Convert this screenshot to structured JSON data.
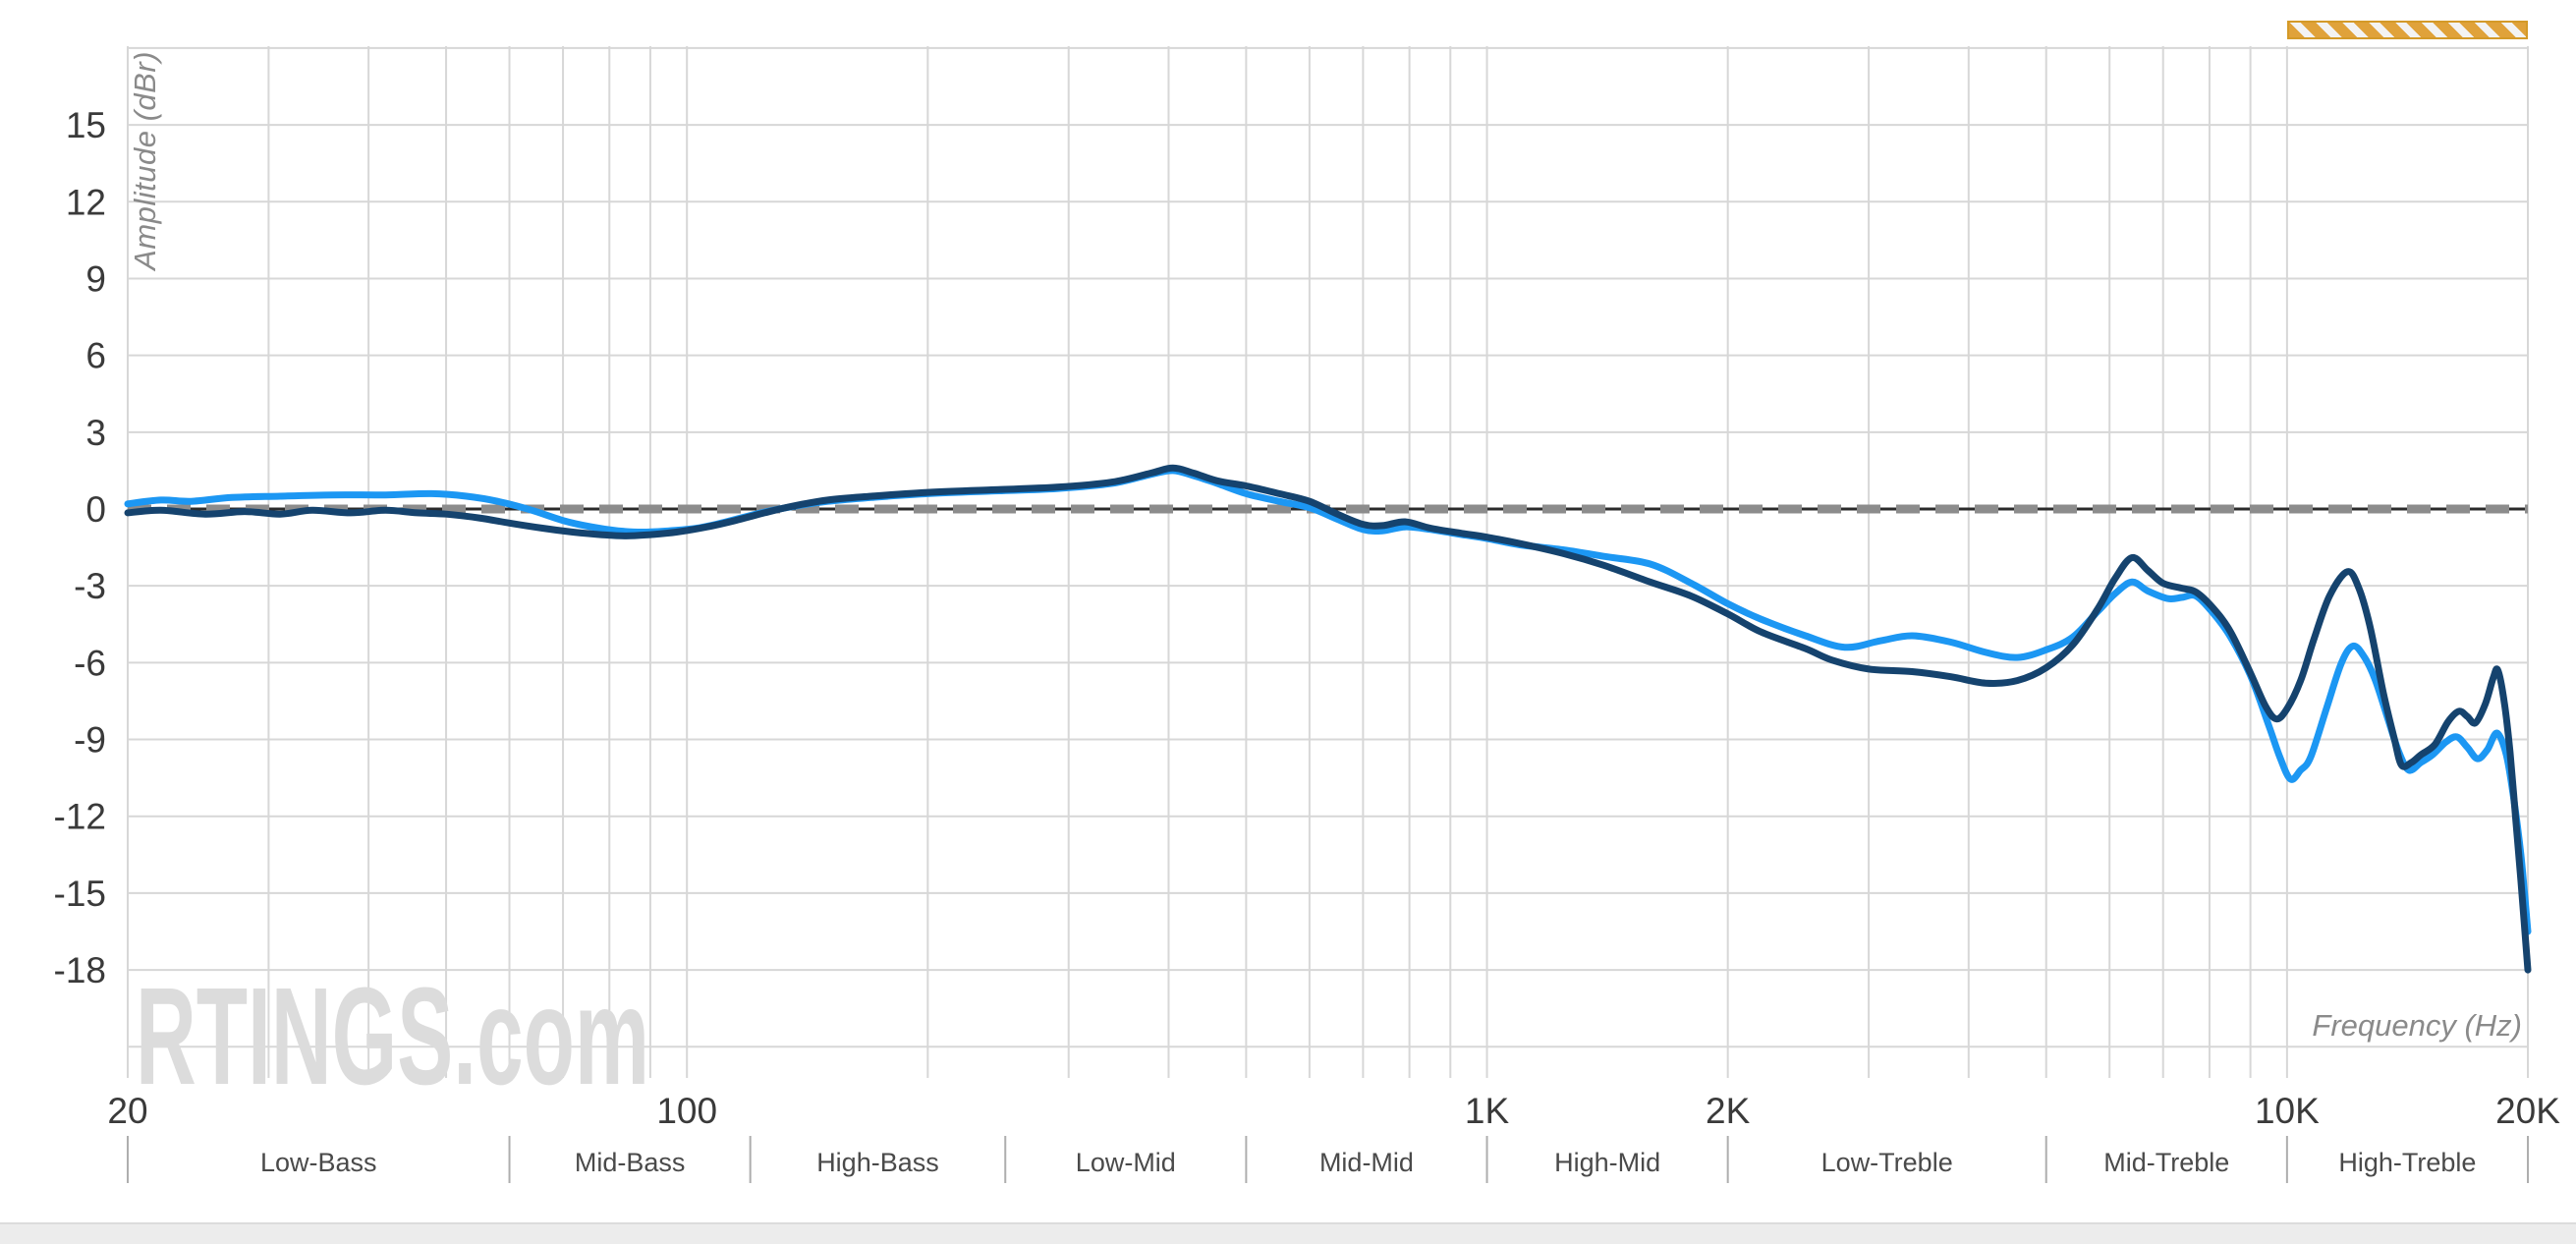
{
  "page": {
    "watermark": "RTINGS.com",
    "background": "#ffffff",
    "footer_bar_color": "#ececec"
  },
  "chart_data": {
    "type": "line",
    "title": "",
    "xlabel": "Frequency (Hz)",
    "ylabel": "Amplitude (dBr)",
    "x_scale": "log",
    "x_range": [
      20,
      20000
    ],
    "y_grid_range": [
      -21,
      18
    ],
    "grid": true,
    "grid_color": "#d7d7d7",
    "tick_label_color": "#3a3a3a",
    "axis_label_color": "#8a8a8a",
    "band_tick_color": "#aeaeae",
    "band_label_color": "#4a4a4a",
    "watermark_color": "#dcdcdc",
    "y_ticks": [
      15,
      12,
      9,
      6,
      3,
      0,
      -3,
      -6,
      -9,
      -12,
      -15,
      -18
    ],
    "grid_db": [
      18,
      15,
      12,
      9,
      6,
      3,
      0,
      -3,
      -6,
      -9,
      -12,
      -15,
      -18,
      -21
    ],
    "grid_freqs": [
      20,
      30,
      40,
      50,
      60,
      70,
      80,
      90,
      100,
      200,
      300,
      400,
      500,
      600,
      700,
      800,
      900,
      1000,
      2000,
      3000,
      4000,
      5000,
      6000,
      7000,
      8000,
      9000,
      10000,
      20000
    ],
    "x_tick_labels": [
      {
        "f": 20,
        "label": "20"
      },
      {
        "f": 100,
        "label": "100"
      },
      {
        "f": 1000,
        "label": "1K"
      },
      {
        "f": 2000,
        "label": "2K"
      },
      {
        "f": 10000,
        "label": "10K"
      },
      {
        "f": 20000,
        "label": "20K"
      }
    ],
    "bands": [
      {
        "label": "Low-Bass",
        "from": 20,
        "to": 60
      },
      {
        "label": "Mid-Bass",
        "from": 60,
        "to": 120
      },
      {
        "label": "High-Bass",
        "from": 120,
        "to": 250
      },
      {
        "label": "Low-Mid",
        "from": 250,
        "to": 500
      },
      {
        "label": "Mid-Mid",
        "from": 500,
        "to": 1000
      },
      {
        "label": "High-Mid",
        "from": 1000,
        "to": 2000
      },
      {
        "label": "Low-Treble",
        "from": 2000,
        "to": 5000
      },
      {
        "label": "Mid-Treble",
        "from": 5000,
        "to": 10000
      },
      {
        "label": "High-Treble",
        "from": 10000,
        "to": 20000
      }
    ],
    "target_line": {
      "db": 0,
      "dash_color": "#8c8c8c",
      "base_color": "#2b2b2b"
    },
    "unreliable_region_marker": {
      "from": 10000,
      "to": 20000,
      "stripe_color": "#e0a23a"
    },
    "series": [
      {
        "name": "response-light-blue",
        "color": "#1c97f3",
        "points": [
          [
            20,
            0.2
          ],
          [
            22,
            0.35
          ],
          [
            24,
            0.3
          ],
          [
            27,
            0.45
          ],
          [
            31,
            0.5
          ],
          [
            36,
            0.55
          ],
          [
            42,
            0.55
          ],
          [
            48,
            0.6
          ],
          [
            53,
            0.5
          ],
          [
            58,
            0.3
          ],
          [
            64,
            -0.05
          ],
          [
            70,
            -0.45
          ],
          [
            76,
            -0.7
          ],
          [
            82,
            -0.85
          ],
          [
            88,
            -0.9
          ],
          [
            95,
            -0.85
          ],
          [
            103,
            -0.75
          ],
          [
            112,
            -0.5
          ],
          [
            122,
            -0.2
          ],
          [
            133,
            0.05
          ],
          [
            150,
            0.3
          ],
          [
            170,
            0.45
          ],
          [
            200,
            0.6
          ],
          [
            240,
            0.7
          ],
          [
            290,
            0.8
          ],
          [
            340,
            1.0
          ],
          [
            380,
            1.35
          ],
          [
            405,
            1.5
          ],
          [
            430,
            1.3
          ],
          [
            460,
            1.0
          ],
          [
            500,
            0.6
          ],
          [
            550,
            0.3
          ],
          [
            600,
            0.05
          ],
          [
            650,
            -0.4
          ],
          [
            700,
            -0.8
          ],
          [
            740,
            -0.85
          ],
          [
            790,
            -0.7
          ],
          [
            850,
            -0.8
          ],
          [
            930,
            -1.0
          ],
          [
            1000,
            -1.15
          ],
          [
            1100,
            -1.4
          ],
          [
            1250,
            -1.6
          ],
          [
            1400,
            -1.85
          ],
          [
            1600,
            -2.15
          ],
          [
            1800,
            -2.9
          ],
          [
            2000,
            -3.7
          ],
          [
            2200,
            -4.3
          ],
          [
            2500,
            -4.95
          ],
          [
            2800,
            -5.4
          ],
          [
            3100,
            -5.15
          ],
          [
            3400,
            -4.95
          ],
          [
            3800,
            -5.2
          ],
          [
            4200,
            -5.6
          ],
          [
            4600,
            -5.8
          ],
          [
            5000,
            -5.5
          ],
          [
            5400,
            -5.0
          ],
          [
            5800,
            -4.0
          ],
          [
            6100,
            -3.3
          ],
          [
            6400,
            -2.85
          ],
          [
            6700,
            -3.2
          ],
          [
            7100,
            -3.5
          ],
          [
            7400,
            -3.45
          ],
          [
            7700,
            -3.4
          ],
          [
            8100,
            -4.1
          ],
          [
            8500,
            -5.0
          ],
          [
            9000,
            -6.5
          ],
          [
            9500,
            -8.5
          ],
          [
            9800,
            -9.7
          ],
          [
            10100,
            -10.55
          ],
          [
            10400,
            -10.2
          ],
          [
            10700,
            -9.7
          ],
          [
            11200,
            -7.8
          ],
          [
            11700,
            -6.0
          ],
          [
            12100,
            -5.35
          ],
          [
            12500,
            -5.8
          ],
          [
            12900,
            -6.7
          ],
          [
            13400,
            -8.3
          ],
          [
            13800,
            -9.5
          ],
          [
            14200,
            -10.2
          ],
          [
            14700,
            -9.9
          ],
          [
            15200,
            -9.6
          ],
          [
            15800,
            -9.1
          ],
          [
            16300,
            -8.9
          ],
          [
            16800,
            -9.3
          ],
          [
            17300,
            -9.75
          ],
          [
            17800,
            -9.4
          ],
          [
            18300,
            -8.75
          ],
          [
            18800,
            -9.6
          ],
          [
            19200,
            -11.3
          ],
          [
            19600,
            -13.5
          ],
          [
            20000,
            -16.5
          ]
        ]
      },
      {
        "name": "response-dark-blue",
        "color": "#15436e",
        "points": [
          [
            20,
            -0.15
          ],
          [
            22,
            -0.05
          ],
          [
            25,
            -0.2
          ],
          [
            28,
            -0.1
          ],
          [
            31,
            -0.2
          ],
          [
            34,
            -0.05
          ],
          [
            38,
            -0.15
          ],
          [
            42,
            -0.05
          ],
          [
            46,
            -0.15
          ],
          [
            50,
            -0.2
          ],
          [
            55,
            -0.35
          ],
          [
            60,
            -0.55
          ],
          [
            66,
            -0.75
          ],
          [
            72,
            -0.9
          ],
          [
            78,
            -1.0
          ],
          [
            84,
            -1.05
          ],
          [
            90,
            -1.0
          ],
          [
            97,
            -0.9
          ],
          [
            106,
            -0.7
          ],
          [
            115,
            -0.45
          ],
          [
            125,
            -0.15
          ],
          [
            135,
            0.1
          ],
          [
            150,
            0.35
          ],
          [
            170,
            0.5
          ],
          [
            200,
            0.65
          ],
          [
            240,
            0.75
          ],
          [
            290,
            0.85
          ],
          [
            340,
            1.05
          ],
          [
            380,
            1.4
          ],
          [
            405,
            1.6
          ],
          [
            430,
            1.4
          ],
          [
            460,
            1.1
          ],
          [
            500,
            0.9
          ],
          [
            550,
            0.6
          ],
          [
            600,
            0.3
          ],
          [
            650,
            -0.2
          ],
          [
            700,
            -0.6
          ],
          [
            740,
            -0.65
          ],
          [
            790,
            -0.5
          ],
          [
            850,
            -0.75
          ],
          [
            930,
            -0.95
          ],
          [
            1000,
            -1.1
          ],
          [
            1100,
            -1.35
          ],
          [
            1250,
            -1.75
          ],
          [
            1400,
            -2.2
          ],
          [
            1600,
            -2.85
          ],
          [
            1800,
            -3.4
          ],
          [
            2000,
            -4.1
          ],
          [
            2200,
            -4.8
          ],
          [
            2500,
            -5.45
          ],
          [
            2700,
            -5.9
          ],
          [
            3000,
            -6.25
          ],
          [
            3400,
            -6.35
          ],
          [
            3800,
            -6.55
          ],
          [
            4200,
            -6.8
          ],
          [
            4600,
            -6.7
          ],
          [
            5000,
            -6.2
          ],
          [
            5400,
            -5.3
          ],
          [
            5800,
            -3.9
          ],
          [
            6100,
            -2.7
          ],
          [
            6400,
            -1.9
          ],
          [
            6700,
            -2.4
          ],
          [
            7000,
            -2.9
          ],
          [
            7400,
            -3.1
          ],
          [
            7700,
            -3.25
          ],
          [
            8100,
            -3.9
          ],
          [
            8500,
            -4.8
          ],
          [
            9000,
            -6.4
          ],
          [
            9400,
            -7.7
          ],
          [
            9700,
            -8.2
          ],
          [
            10000,
            -7.8
          ],
          [
            10400,
            -6.7
          ],
          [
            10800,
            -5.1
          ],
          [
            11300,
            -3.4
          ],
          [
            11900,
            -2.45
          ],
          [
            12300,
            -3.1
          ],
          [
            12700,
            -4.6
          ],
          [
            13200,
            -7.2
          ],
          [
            13600,
            -8.9
          ],
          [
            13900,
            -10.0
          ],
          [
            14300,
            -9.9
          ],
          [
            14700,
            -9.6
          ],
          [
            15300,
            -9.2
          ],
          [
            15900,
            -8.3
          ],
          [
            16400,
            -7.9
          ],
          [
            16800,
            -8.1
          ],
          [
            17200,
            -8.35
          ],
          [
            17700,
            -7.6
          ],
          [
            18100,
            -6.6
          ],
          [
            18350,
            -6.3
          ],
          [
            18700,
            -7.6
          ],
          [
            19000,
            -9.5
          ],
          [
            19300,
            -12.0
          ],
          [
            19600,
            -14.5
          ],
          [
            20000,
            -18.0
          ]
        ]
      }
    ]
  }
}
